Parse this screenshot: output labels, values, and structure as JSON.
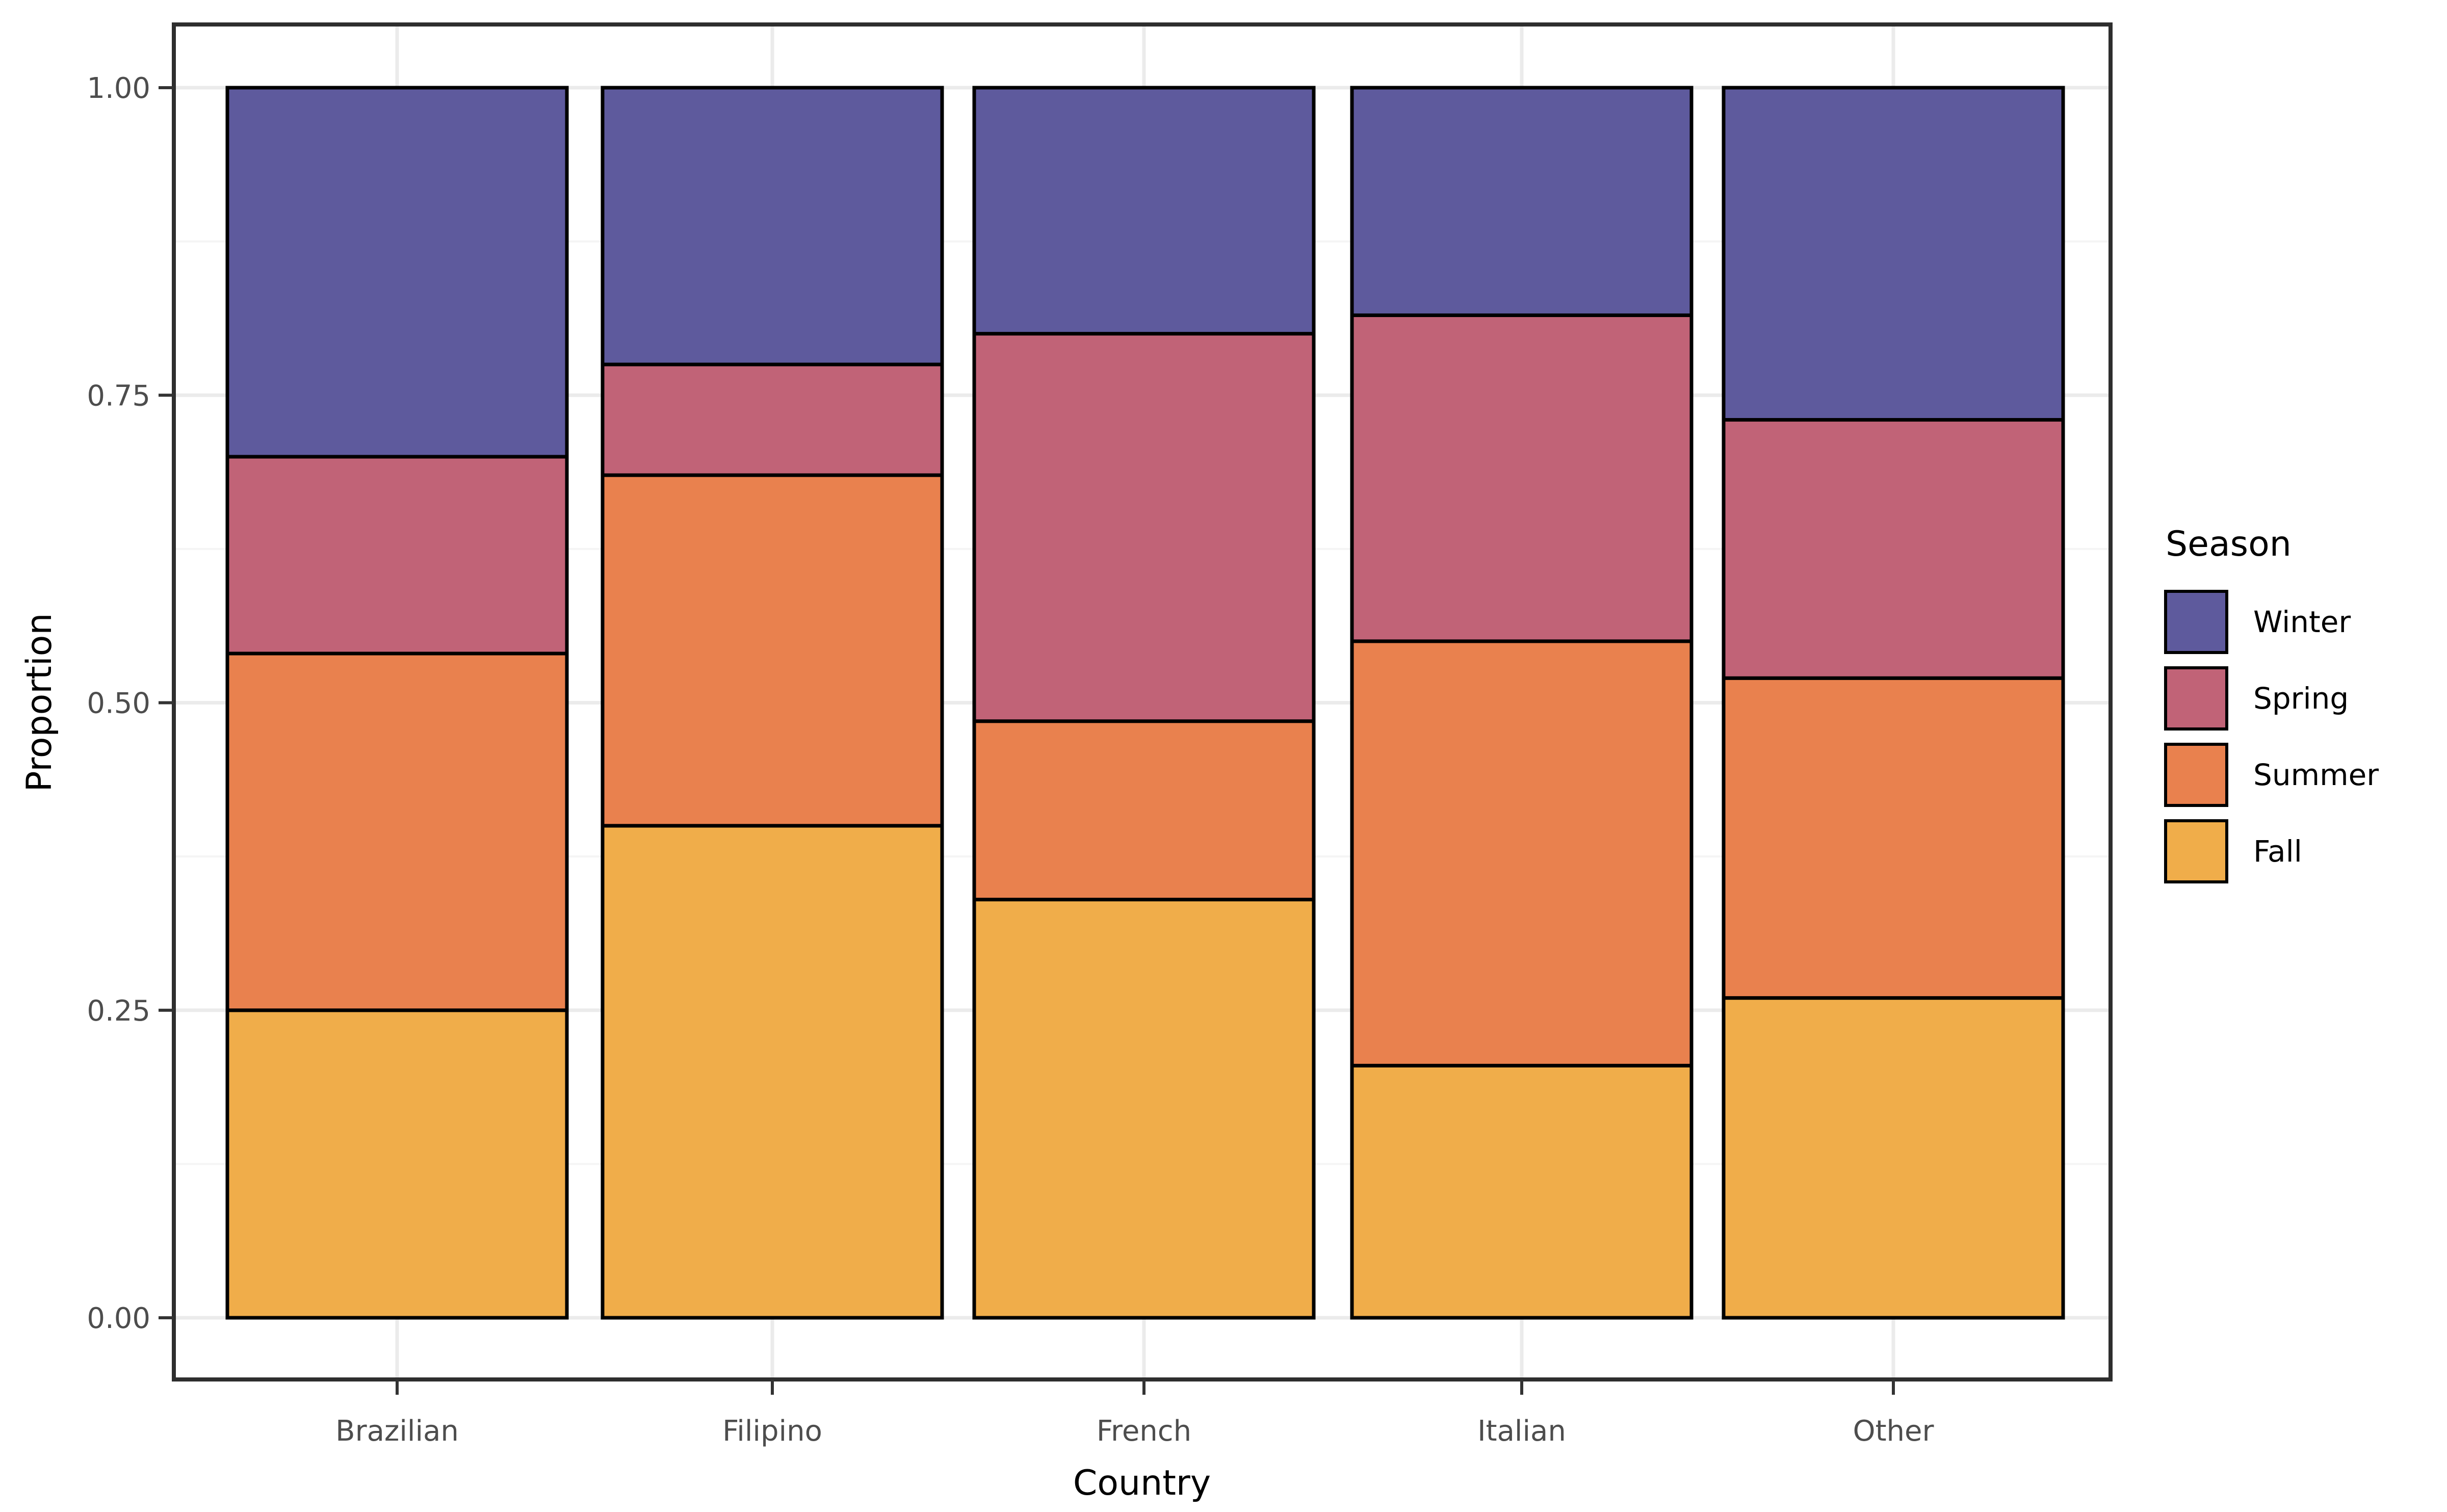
{
  "figure": {
    "background": "#ffffff"
  },
  "chart_data": {
    "type": "bar",
    "stacked": true,
    "normalized": true,
    "orientation": "vertical",
    "title": "",
    "xlabel": "Country",
    "ylabel": "Proportion",
    "categories": [
      "Brazilian",
      "Filipino",
      "French",
      "Italian",
      "Other"
    ],
    "series": [
      {
        "name": "Fall",
        "color": "#f0ad4a",
        "values": [
          0.25,
          0.4,
          0.34,
          0.205,
          0.26
        ]
      },
      {
        "name": "Summer",
        "color": "#e9814e",
        "values": [
          0.29,
          0.285,
          0.145,
          0.345,
          0.26
        ]
      },
      {
        "name": "Spring",
        "color": "#c16377",
        "values": [
          0.16,
          0.09,
          0.315,
          0.265,
          0.21
        ]
      },
      {
        "name": "Winter",
        "color": "#5e5a9d",
        "values": [
          0.3,
          0.225,
          0.2,
          0.185,
          0.27
        ]
      }
    ],
    "stack_order_bottom_to_top": [
      "Fall",
      "Summer",
      "Spring",
      "Winter"
    ],
    "ylim": [
      0,
      1
    ],
    "yticks": [
      0,
      0.25,
      0.5,
      0.75,
      1
    ],
    "ytick_labels": [
      "0.00",
      "0.25",
      "0.50",
      "0.75",
      "1.00"
    ],
    "minor_yticks": [
      0.125,
      0.375,
      0.625,
      0.875
    ],
    "grid": {
      "major": true,
      "minor": true,
      "major_color": "#ebebeb",
      "minor_color": "#f5f5f5"
    },
    "legend": {
      "title": "Season",
      "position": "right",
      "entries": [
        {
          "label": "Winter",
          "color": "#5e5a9d"
        },
        {
          "label": "Spring",
          "color": "#c16377"
        },
        {
          "label": "Summer",
          "color": "#e9814e"
        },
        {
          "label": "Fall",
          "color": "#f0ad4a"
        }
      ]
    },
    "bar_border_color": "#000000",
    "panel_border_color": "#2e2e2e",
    "tick_color": "#333333",
    "tick_label_color": "#4d4d4d",
    "axis_title_color": "#000000"
  }
}
